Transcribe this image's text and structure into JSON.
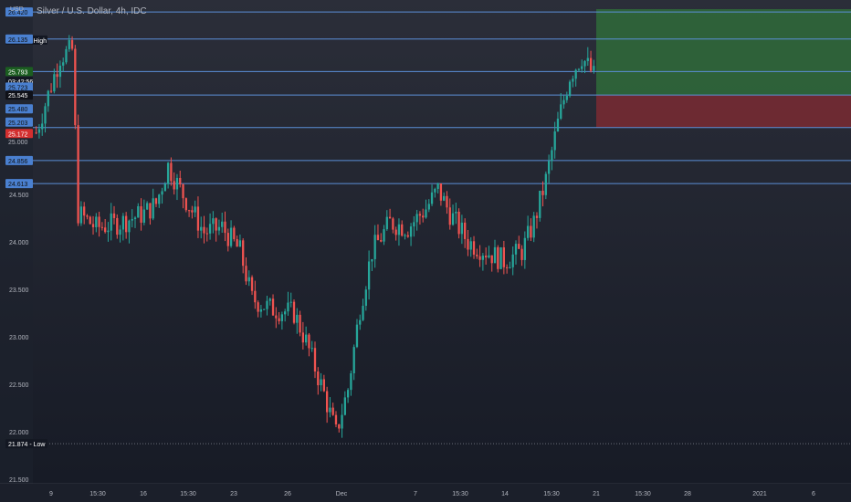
{
  "chart_data": {
    "type": "candlestick",
    "title": "Silver / U.S. Dollar, 4h, IDC",
    "currency_label": "USD",
    "ylim": [
      21.5,
      26.45
    ],
    "y_ticks": [
      {
        "label": "24.500",
        "value": 24.5
      },
      {
        "label": "24.000",
        "value": 24.0
      },
      {
        "label": "23.500",
        "value": 23.5
      },
      {
        "label": "23.000",
        "value": 23.0
      },
      {
        "label": "22.500",
        "value": 22.5
      },
      {
        "label": "22.000",
        "value": 22.0
      },
      {
        "label": "21.500",
        "value": 21.5
      }
    ],
    "x_ticks": [
      "9",
      "15:30",
      "16",
      "15:30",
      "23",
      "26",
      "Dec",
      "7",
      "15:30",
      "14",
      "15:30",
      "21",
      "15:30",
      "28",
      "2021",
      "6"
    ],
    "horizontal_levels": [
      {
        "label": "26.420",
        "value": 26.42
      },
      {
        "label": "26.135",
        "value": 26.135
      },
      {
        "label": "25.793",
        "value": 25.793
      },
      {
        "label": "25.545",
        "value": 25.545
      },
      {
        "label": "25.203",
        "value": 25.203
      },
      {
        "label": "24.856",
        "value": 24.856
      },
      {
        "label": "24.613",
        "value": 24.613
      }
    ],
    "price_labels": [
      {
        "label": "26.125 - High",
        "value": 26.125,
        "kind": "high"
      },
      {
        "label": "25.793",
        "value": 25.793,
        "kind": "green"
      },
      {
        "label": "03:42:56",
        "value": 25.69,
        "kind": "timer"
      },
      {
        "label": "25.723",
        "value": 25.63,
        "kind": "blue"
      },
      {
        "label": "25.545",
        "value": 25.545,
        "kind": "dark"
      },
      {
        "label": "25.480",
        "value": 25.4,
        "kind": "blue"
      },
      {
        "label": "25.203",
        "value": 25.26,
        "kind": "blue"
      },
      {
        "label": "25.000",
        "value": 25.055,
        "kind": "plain"
      },
      {
        "label": "25.172",
        "value": 25.14,
        "kind": "red"
      },
      {
        "label": "21.874 - Low",
        "value": 21.874,
        "kind": "low"
      }
    ],
    "position": {
      "entry": 25.545,
      "target": 26.45,
      "stop": 25.203
    },
    "colors": {
      "up": "#26a69a",
      "down": "#ef5350",
      "level_line": "#5b8fd8",
      "label_blue": "#4a80d0",
      "label_green": "#1b5e20",
      "label_red": "#d32f2f",
      "label_dark": "#131722",
      "profit_zone": "#2f6b3a",
      "loss_zone": "#7a2a33"
    },
    "series": [
      {
        "anchors": [
          [
            0,
            25.15
          ],
          [
            4,
            25.55
          ],
          [
            8,
            25.95
          ],
          [
            12,
            26.02
          ],
          [
            14,
            24.3
          ],
          [
            20,
            24.15
          ],
          [
            28,
            24.2
          ],
          [
            36,
            24.3
          ],
          [
            40,
            24.4
          ],
          [
            44,
            24.8
          ],
          [
            48,
            24.55
          ],
          [
            56,
            24.1
          ],
          [
            62,
            24.15
          ],
          [
            68,
            23.9
          ],
          [
            72,
            23.4
          ],
          [
            78,
            23.3
          ],
          [
            86,
            23.25
          ],
          [
            90,
            22.95
          ],
          [
            96,
            22.4
          ],
          [
            100,
            21.98
          ],
          [
            104,
            22.45
          ],
          [
            108,
            23.3
          ],
          [
            112,
            23.9
          ],
          [
            118,
            24.2
          ],
          [
            124,
            24.15
          ],
          [
            130,
            24.35
          ],
          [
            134,
            24.55
          ],
          [
            138,
            24.3
          ],
          [
            144,
            24.0
          ],
          [
            150,
            23.9
          ],
          [
            156,
            23.8
          ],
          [
            162,
            23.9
          ],
          [
            166,
            24.2
          ],
          [
            170,
            24.65
          ],
          [
            174,
            25.25
          ],
          [
            178,
            25.75
          ],
          [
            182,
            25.95
          ],
          [
            186,
            25.75
          ]
        ]
      }
    ]
  }
}
